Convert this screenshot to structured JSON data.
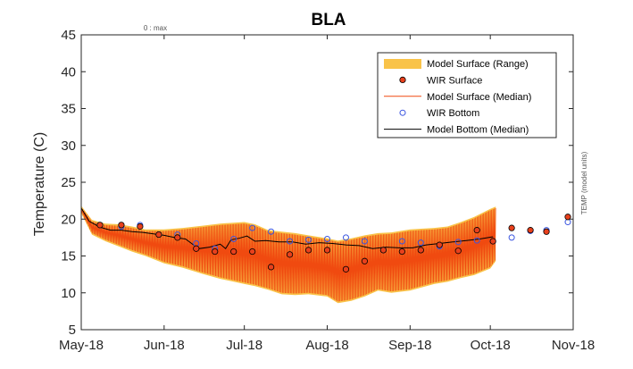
{
  "chart_data": {
    "type": "line",
    "title": "BLA",
    "ylabel": "Temperature (C)",
    "right_label": "TEMP (model units)",
    "top_label": "0 : max",
    "xlim": [
      "2018-05-01",
      "2018-11-01"
    ],
    "ylim": [
      5,
      45
    ],
    "yticks": [
      5,
      10,
      15,
      20,
      25,
      30,
      35,
      40,
      45
    ],
    "xticks": [
      {
        "date": "2018-05-01",
        "label": "May-18"
      },
      {
        "date": "2018-06-01",
        "label": "Jun-18"
      },
      {
        "date": "2018-07-01",
        "label": "Jul-18"
      },
      {
        "date": "2018-08-01",
        "label": "Aug-18"
      },
      {
        "date": "2018-09-01",
        "label": "Sep-18"
      },
      {
        "date": "2018-10-01",
        "label": "Oct-18"
      },
      {
        "date": "2018-11-01",
        "label": "Nov-18"
      }
    ],
    "legend_position": "top-right",
    "colors": {
      "range": "#f9c349",
      "surface_marker_fill": "#e8401c",
      "surface_median": "#f04a10",
      "bottom_marker": "#3a55e0",
      "bottom_median": "#000000"
    },
    "series": [
      {
        "name": "Model Surface (Range)",
        "kind": "band",
        "x": [
          "2018-05-01",
          "2018-05-05",
          "2018-05-10",
          "2018-05-15",
          "2018-05-20",
          "2018-05-25",
          "2018-06-01",
          "2018-06-08",
          "2018-06-15",
          "2018-06-22",
          "2018-07-01",
          "2018-07-05",
          "2018-07-10",
          "2018-07-15",
          "2018-07-20",
          "2018-07-25",
          "2018-08-01",
          "2018-08-05",
          "2018-08-10",
          "2018-08-15",
          "2018-08-20",
          "2018-08-25",
          "2018-09-01",
          "2018-09-05",
          "2018-09-10",
          "2018-09-15",
          "2018-09-20",
          "2018-09-25",
          "2018-10-01",
          "2018-10-03"
        ],
        "low": [
          20.8,
          17.9,
          17.0,
          16.3,
          15.6,
          15.0,
          14.0,
          13.4,
          12.6,
          11.9,
          11.2,
          10.9,
          10.4,
          9.8,
          9.7,
          9.8,
          9.5,
          8.6,
          8.9,
          9.5,
          10.3,
          10.0,
          10.3,
          10.7,
          11.2,
          11.5,
          12.0,
          12.4,
          13.3,
          14.3
        ],
        "high": [
          21.8,
          19.9,
          19.4,
          19.3,
          19.0,
          18.6,
          18.6,
          18.8,
          19.1,
          19.4,
          19.6,
          19.3,
          18.5,
          18.3,
          18.1,
          17.8,
          17.4,
          17.1,
          17.4,
          17.8,
          18.1,
          18.2,
          18.6,
          18.7,
          18.8,
          19.0,
          19.6,
          20.3,
          21.4,
          21.7
        ]
      },
      {
        "name": "WIR Surface",
        "kind": "markers",
        "x": [
          "2018-05-08",
          "2018-05-16",
          "2018-05-23",
          "2018-05-30",
          "2018-06-06",
          "2018-06-13",
          "2018-06-20",
          "2018-06-27",
          "2018-07-04",
          "2018-07-11",
          "2018-07-18",
          "2018-07-25",
          "2018-08-01",
          "2018-08-08",
          "2018-08-15",
          "2018-08-22",
          "2018-08-29",
          "2018-09-05",
          "2018-09-12",
          "2018-09-19",
          "2018-09-26",
          "2018-10-02",
          "2018-10-09",
          "2018-10-16",
          "2018-10-22",
          "2018-10-30"
        ],
        "y": [
          19.2,
          19.2,
          19.0,
          17.9,
          17.5,
          16.0,
          15.6,
          15.6,
          15.6,
          13.5,
          15.2,
          15.8,
          15.8,
          13.2,
          14.3,
          15.8,
          15.6,
          15.8,
          16.5,
          15.7,
          18.5,
          17.0,
          18.8,
          18.5,
          18.3,
          20.3
        ]
      },
      {
        "name": "Model Surface (Median)",
        "kind": "line",
        "x": [
          "2018-05-01",
          "2018-05-05",
          "2018-05-10",
          "2018-05-15",
          "2018-05-20",
          "2018-05-25",
          "2018-06-01",
          "2018-06-08",
          "2018-06-15",
          "2018-06-22",
          "2018-07-01",
          "2018-07-05",
          "2018-07-10",
          "2018-07-15",
          "2018-07-20",
          "2018-07-25",
          "2018-08-01",
          "2018-08-05",
          "2018-08-10",
          "2018-08-15",
          "2018-08-20",
          "2018-08-25",
          "2018-09-01",
          "2018-09-05",
          "2018-09-10",
          "2018-09-15",
          "2018-09-20",
          "2018-09-25",
          "2018-10-01",
          "2018-10-03"
        ],
        "low": [
          21.0,
          18.1,
          17.2,
          16.5,
          15.8,
          15.2,
          14.2,
          13.6,
          12.8,
          12.1,
          11.4,
          11.1,
          10.6,
          10.0,
          9.9,
          10.0,
          9.7,
          8.8,
          9.1,
          9.7,
          10.5,
          10.2,
          10.5,
          10.9,
          11.4,
          11.7,
          12.2,
          12.6,
          13.5,
          14.5
        ],
        "high": [
          21.6,
          19.7,
          19.2,
          19.1,
          18.8,
          18.4,
          18.4,
          18.6,
          18.9,
          19.2,
          19.4,
          19.1,
          18.3,
          18.1,
          17.9,
          17.6,
          17.2,
          16.9,
          17.2,
          17.6,
          17.9,
          18.0,
          18.4,
          18.5,
          18.6,
          18.8,
          19.4,
          20.1,
          21.2,
          21.5
        ]
      },
      {
        "name": "WIR Bottom",
        "kind": "markers",
        "x": [
          "2018-05-08",
          "2018-05-16",
          "2018-05-23",
          "2018-05-30",
          "2018-06-06",
          "2018-06-13",
          "2018-06-20",
          "2018-06-27",
          "2018-07-04",
          "2018-07-11",
          "2018-07-18",
          "2018-07-25",
          "2018-08-01",
          "2018-08-08",
          "2018-08-15",
          "2018-08-22",
          "2018-08-29",
          "2018-09-05",
          "2018-09-12",
          "2018-09-19",
          "2018-09-26",
          "2018-10-02",
          "2018-10-09",
          "2018-10-16",
          "2018-10-22",
          "2018-10-30"
        ],
        "y": [
          19.2,
          19.0,
          19.2,
          17.9,
          17.9,
          16.7,
          16.0,
          17.3,
          18.8,
          18.3,
          17.0,
          17.2,
          17.3,
          17.5,
          17.0,
          15.8,
          17.0,
          16.8,
          16.3,
          16.9,
          17.1,
          17.0,
          17.5,
          18.4,
          18.5,
          19.6
        ]
      },
      {
        "name": "Model Bottom (Median)",
        "kind": "line",
        "x": [
          "2018-05-01",
          "2018-05-04",
          "2018-05-08",
          "2018-05-12",
          "2018-05-16",
          "2018-05-20",
          "2018-05-24",
          "2018-05-28",
          "2018-06-01",
          "2018-06-05",
          "2018-06-09",
          "2018-06-12",
          "2018-06-14",
          "2018-06-18",
          "2018-06-22",
          "2018-06-24",
          "2018-06-26",
          "2018-06-29",
          "2018-07-02",
          "2018-07-05",
          "2018-07-09",
          "2018-07-14",
          "2018-07-19",
          "2018-07-24",
          "2018-07-29",
          "2018-08-03",
          "2018-08-08",
          "2018-08-13",
          "2018-08-18",
          "2018-08-23",
          "2018-08-28",
          "2018-09-02",
          "2018-09-07",
          "2018-09-12",
          "2018-09-17",
          "2018-09-22",
          "2018-09-27",
          "2018-10-02"
        ],
        "y": [
          21.5,
          19.7,
          18.9,
          18.5,
          18.5,
          18.3,
          18.2,
          18.0,
          17.8,
          17.5,
          17.3,
          16.5,
          16.0,
          16.2,
          16.6,
          16.0,
          17.2,
          17.4,
          17.7,
          17.0,
          17.1,
          16.9,
          16.9,
          16.6,
          16.8,
          16.7,
          16.5,
          16.4,
          16.0,
          16.2,
          16.1,
          16.1,
          16.5,
          16.7,
          16.9,
          17.1,
          17.3,
          17.6
        ]
      }
    ]
  }
}
